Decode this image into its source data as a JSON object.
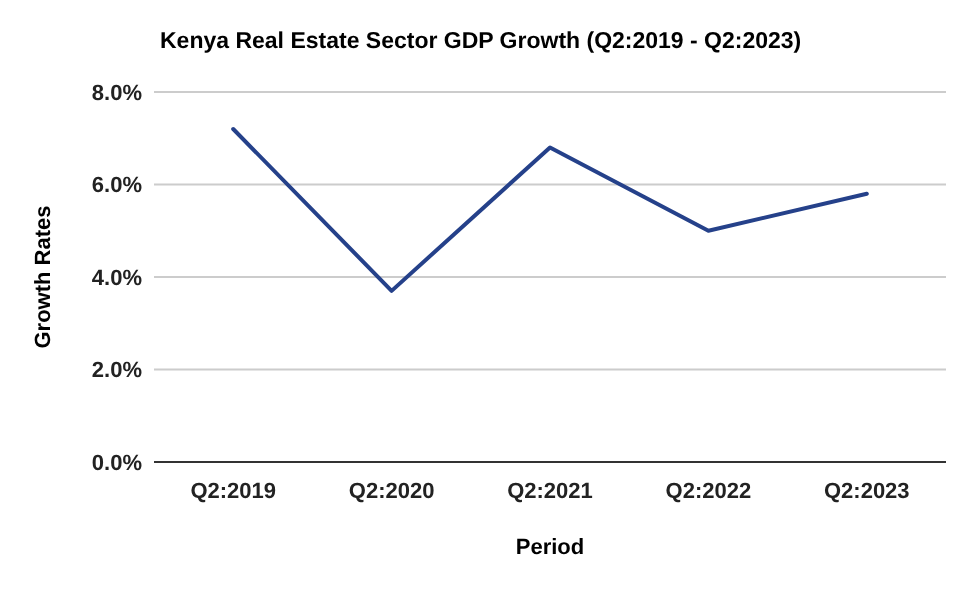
{
  "chart_data": {
    "type": "line",
    "title": "Kenya Real Estate Sector GDP Growth (Q2:2019 - Q2:2023)",
    "xlabel": "Period",
    "ylabel": "Growth Rates",
    "categories": [
      "Q2:2019",
      "Q2:2020",
      "Q2:2021",
      "Q2:2022",
      "Q2:2023"
    ],
    "series": [
      {
        "color": "#25418a",
        "values": [
          7.2,
          3.7,
          6.8,
          5.0,
          5.8
        ]
      }
    ],
    "ylim": [
      0,
      8
    ],
    "yticks": [
      {
        "value": 0,
        "label": "0.0%"
      },
      {
        "value": 2,
        "label": "2.0%"
      },
      {
        "value": 4,
        "label": "4.0%"
      },
      {
        "value": 6,
        "label": "6.0%"
      },
      {
        "value": 8,
        "label": "8.0%"
      }
    ],
    "grid": "y",
    "marker": "none",
    "line_style": "solid"
  }
}
